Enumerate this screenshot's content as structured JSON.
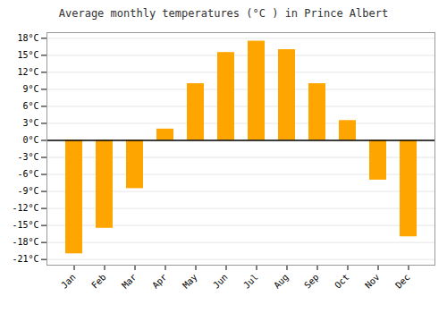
{
  "chart_data": {
    "type": "bar",
    "title": "Average monthly temperatures (°C ) in Prince Albert",
    "categories": [
      "Jan",
      "Feb",
      "Mar",
      "Apr",
      "May",
      "Jun",
      "Jul",
      "Aug",
      "Sep",
      "Oct",
      "Nov",
      "Dec"
    ],
    "values": [
      -20,
      -15.5,
      -8.5,
      2,
      10,
      15.5,
      17.5,
      16,
      10,
      3.5,
      -7,
      -17
    ],
    "color": "#FFA500",
    "ylim": [
      -22,
      19
    ],
    "yticks": [
      {
        "value": -21,
        "label": "-21°C"
      },
      {
        "value": -18,
        "label": "-18°C"
      },
      {
        "value": -15,
        "label": "-15°C"
      },
      {
        "value": -12,
        "label": "-12°C"
      },
      {
        "value": -9,
        "label": "-9°C"
      },
      {
        "value": -6,
        "label": "-6°C"
      },
      {
        "value": -3,
        "label": "-3°C"
      },
      {
        "value": 0,
        "label": "0°C"
      },
      {
        "value": 3,
        "label": "3°C"
      },
      {
        "value": 6,
        "label": "6°C"
      },
      {
        "value": 9,
        "label": "9°C"
      },
      {
        "value": 12,
        "label": "12°C"
      },
      {
        "value": 15,
        "label": "15°C"
      },
      {
        "value": 18,
        "label": "18°C"
      }
    ],
    "grid": true
  }
}
